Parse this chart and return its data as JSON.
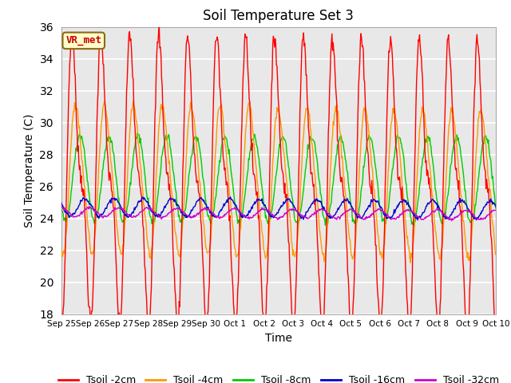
{
  "title": "Soil Temperature Set 3",
  "xlabel": "Time",
  "ylabel": "Soil Temperature (C)",
  "ylim": [
    18,
    36
  ],
  "yticks": [
    18,
    20,
    22,
    24,
    26,
    28,
    30,
    32,
    34,
    36
  ],
  "background_color": "#e8e8e8",
  "annotation_text": "VR_met",
  "annotation_bg": "#ffffcc",
  "annotation_border": "#8B6914",
  "line_colors": {
    "2cm": "#ff0000",
    "4cm": "#ff9900",
    "8cm": "#00cc00",
    "16cm": "#0000cc",
    "32cm": "#cc00cc"
  },
  "legend_labels": [
    "Tsoil -2cm",
    "Tsoil -4cm",
    "Tsoil -8cm",
    "Tsoil -16cm",
    "Tsoil -32cm"
  ],
  "x_tick_labels": [
    "Sep 25",
    "Sep 26",
    "Sep 27",
    "Sep 28",
    "Sep 29",
    "Sep 30",
    "Oct 1",
    "Oct 2",
    "Oct 3",
    "Oct 4",
    "Oct 5",
    "Oct 6",
    "Oct 7",
    "Oct 8",
    "Oct 9",
    "Oct 10"
  ],
  "n_days": 15,
  "points_per_day": 48,
  "base_mean": 26.5,
  "amp_2cm": 7.5,
  "amp_4cm": 4.5,
  "amp_8cm": 2.7,
  "amp_16cm": 0.55,
  "amp_32cm": 0.28,
  "mean_16cm": 24.7,
  "mean_32cm": 24.4,
  "cooling_trend": -0.4
}
